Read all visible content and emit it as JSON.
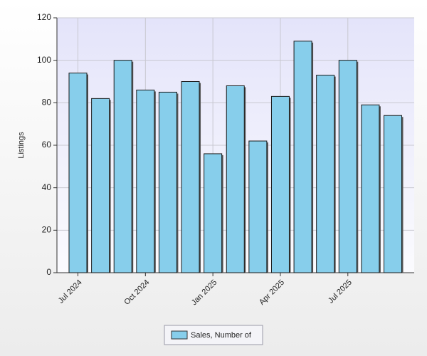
{
  "chart_data": {
    "type": "bar",
    "y_label": "Listings",
    "categories": [
      "Jul 2024",
      null,
      null,
      "Oct 2024",
      null,
      null,
      "Jan 2025",
      null,
      null,
      "Apr 2025",
      null,
      null,
      "Jul 2025",
      null,
      null
    ],
    "series": [
      {
        "name": "Sales, Number of",
        "color": "#87ceeb",
        "values": [
          94,
          82,
          100,
          86,
          85,
          90,
          56,
          88,
          62,
          83,
          109,
          93,
          100,
          79,
          74
        ]
      }
    ],
    "ylim": [
      0,
      120
    ],
    "yticks": [
      0,
      20,
      40,
      60,
      80,
      100,
      120
    ],
    "grid": true,
    "legend": "bottom"
  }
}
